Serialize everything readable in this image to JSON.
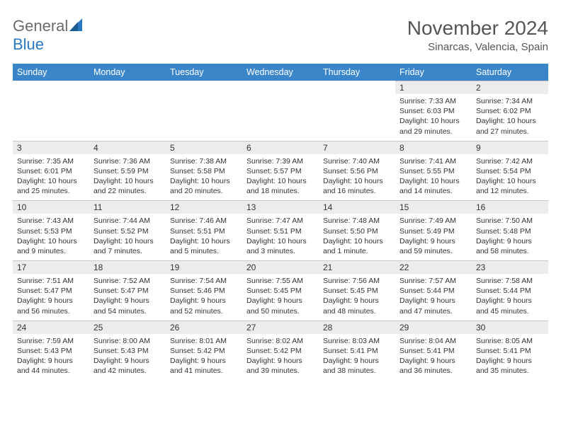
{
  "brand": {
    "part1": "General",
    "part2": "Blue"
  },
  "title": "November 2024",
  "location": "Sinarcas, Valencia, Spain",
  "colors": {
    "header_bg": "#3a86c8",
    "daynum_bg": "#ececec",
    "text": "#333333",
    "title_text": "#555555",
    "logo_gray": "#6b6b6b",
    "logo_blue": "#2a78c0",
    "border": "#c9c9c9"
  },
  "dow": [
    "Sunday",
    "Monday",
    "Tuesday",
    "Wednesday",
    "Thursday",
    "Friday",
    "Saturday"
  ],
  "weeks": [
    [
      null,
      null,
      null,
      null,
      null,
      {
        "n": "1",
        "sr": "Sunrise: 7:33 AM",
        "ss": "Sunset: 6:03 PM",
        "dl": "Daylight: 10 hours and 29 minutes."
      },
      {
        "n": "2",
        "sr": "Sunrise: 7:34 AM",
        "ss": "Sunset: 6:02 PM",
        "dl": "Daylight: 10 hours and 27 minutes."
      }
    ],
    [
      {
        "n": "3",
        "sr": "Sunrise: 7:35 AM",
        "ss": "Sunset: 6:01 PM",
        "dl": "Daylight: 10 hours and 25 minutes."
      },
      {
        "n": "4",
        "sr": "Sunrise: 7:36 AM",
        "ss": "Sunset: 5:59 PM",
        "dl": "Daylight: 10 hours and 22 minutes."
      },
      {
        "n": "5",
        "sr": "Sunrise: 7:38 AM",
        "ss": "Sunset: 5:58 PM",
        "dl": "Daylight: 10 hours and 20 minutes."
      },
      {
        "n": "6",
        "sr": "Sunrise: 7:39 AM",
        "ss": "Sunset: 5:57 PM",
        "dl": "Daylight: 10 hours and 18 minutes."
      },
      {
        "n": "7",
        "sr": "Sunrise: 7:40 AM",
        "ss": "Sunset: 5:56 PM",
        "dl": "Daylight: 10 hours and 16 minutes."
      },
      {
        "n": "8",
        "sr": "Sunrise: 7:41 AM",
        "ss": "Sunset: 5:55 PM",
        "dl": "Daylight: 10 hours and 14 minutes."
      },
      {
        "n": "9",
        "sr": "Sunrise: 7:42 AM",
        "ss": "Sunset: 5:54 PM",
        "dl": "Daylight: 10 hours and 12 minutes."
      }
    ],
    [
      {
        "n": "10",
        "sr": "Sunrise: 7:43 AM",
        "ss": "Sunset: 5:53 PM",
        "dl": "Daylight: 10 hours and 9 minutes."
      },
      {
        "n": "11",
        "sr": "Sunrise: 7:44 AM",
        "ss": "Sunset: 5:52 PM",
        "dl": "Daylight: 10 hours and 7 minutes."
      },
      {
        "n": "12",
        "sr": "Sunrise: 7:46 AM",
        "ss": "Sunset: 5:51 PM",
        "dl": "Daylight: 10 hours and 5 minutes."
      },
      {
        "n": "13",
        "sr": "Sunrise: 7:47 AM",
        "ss": "Sunset: 5:51 PM",
        "dl": "Daylight: 10 hours and 3 minutes."
      },
      {
        "n": "14",
        "sr": "Sunrise: 7:48 AM",
        "ss": "Sunset: 5:50 PM",
        "dl": "Daylight: 10 hours and 1 minute."
      },
      {
        "n": "15",
        "sr": "Sunrise: 7:49 AM",
        "ss": "Sunset: 5:49 PM",
        "dl": "Daylight: 9 hours and 59 minutes."
      },
      {
        "n": "16",
        "sr": "Sunrise: 7:50 AM",
        "ss": "Sunset: 5:48 PM",
        "dl": "Daylight: 9 hours and 58 minutes."
      }
    ],
    [
      {
        "n": "17",
        "sr": "Sunrise: 7:51 AM",
        "ss": "Sunset: 5:47 PM",
        "dl": "Daylight: 9 hours and 56 minutes."
      },
      {
        "n": "18",
        "sr": "Sunrise: 7:52 AM",
        "ss": "Sunset: 5:47 PM",
        "dl": "Daylight: 9 hours and 54 minutes."
      },
      {
        "n": "19",
        "sr": "Sunrise: 7:54 AM",
        "ss": "Sunset: 5:46 PM",
        "dl": "Daylight: 9 hours and 52 minutes."
      },
      {
        "n": "20",
        "sr": "Sunrise: 7:55 AM",
        "ss": "Sunset: 5:45 PM",
        "dl": "Daylight: 9 hours and 50 minutes."
      },
      {
        "n": "21",
        "sr": "Sunrise: 7:56 AM",
        "ss": "Sunset: 5:45 PM",
        "dl": "Daylight: 9 hours and 48 minutes."
      },
      {
        "n": "22",
        "sr": "Sunrise: 7:57 AM",
        "ss": "Sunset: 5:44 PM",
        "dl": "Daylight: 9 hours and 47 minutes."
      },
      {
        "n": "23",
        "sr": "Sunrise: 7:58 AM",
        "ss": "Sunset: 5:44 PM",
        "dl": "Daylight: 9 hours and 45 minutes."
      }
    ],
    [
      {
        "n": "24",
        "sr": "Sunrise: 7:59 AM",
        "ss": "Sunset: 5:43 PM",
        "dl": "Daylight: 9 hours and 44 minutes."
      },
      {
        "n": "25",
        "sr": "Sunrise: 8:00 AM",
        "ss": "Sunset: 5:43 PM",
        "dl": "Daylight: 9 hours and 42 minutes."
      },
      {
        "n": "26",
        "sr": "Sunrise: 8:01 AM",
        "ss": "Sunset: 5:42 PM",
        "dl": "Daylight: 9 hours and 41 minutes."
      },
      {
        "n": "27",
        "sr": "Sunrise: 8:02 AM",
        "ss": "Sunset: 5:42 PM",
        "dl": "Daylight: 9 hours and 39 minutes."
      },
      {
        "n": "28",
        "sr": "Sunrise: 8:03 AM",
        "ss": "Sunset: 5:41 PM",
        "dl": "Daylight: 9 hours and 38 minutes."
      },
      {
        "n": "29",
        "sr": "Sunrise: 8:04 AM",
        "ss": "Sunset: 5:41 PM",
        "dl": "Daylight: 9 hours and 36 minutes."
      },
      {
        "n": "30",
        "sr": "Sunrise: 8:05 AM",
        "ss": "Sunset: 5:41 PM",
        "dl": "Daylight: 9 hours and 35 minutes."
      }
    ]
  ]
}
